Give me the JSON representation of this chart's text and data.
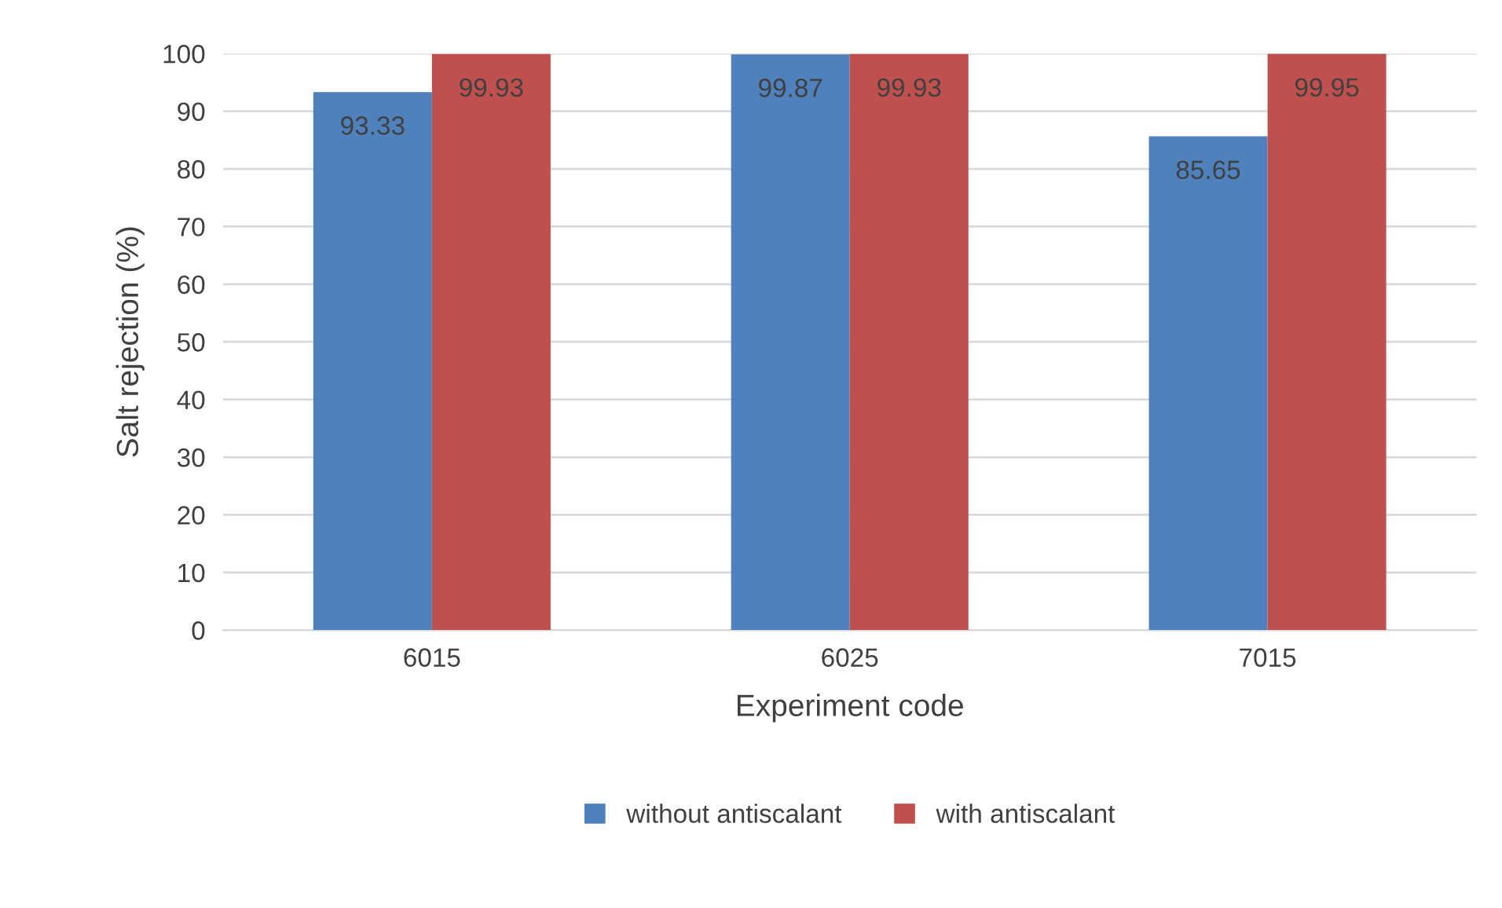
{
  "chart_data": {
    "type": "bar",
    "xlabel": "Experiment code",
    "ylabel": "Salt rejection (%)",
    "categories": [
      "6015",
      "6025",
      "7015"
    ],
    "series": [
      {
        "name": "without antiscalant",
        "color": "#4f81bd",
        "values": [
          93.33,
          99.87,
          85.65
        ]
      },
      {
        "name": "with antiscalant",
        "color": "#c0504d",
        "values": [
          99.93,
          99.93,
          99.95
        ]
      }
    ],
    "ylim": [
      0,
      100
    ],
    "yticks": [
      0,
      10,
      20,
      30,
      40,
      50,
      60,
      70,
      80,
      90,
      100
    ],
    "grid": "y",
    "legend": "bottom",
    "data_labels": true
  }
}
